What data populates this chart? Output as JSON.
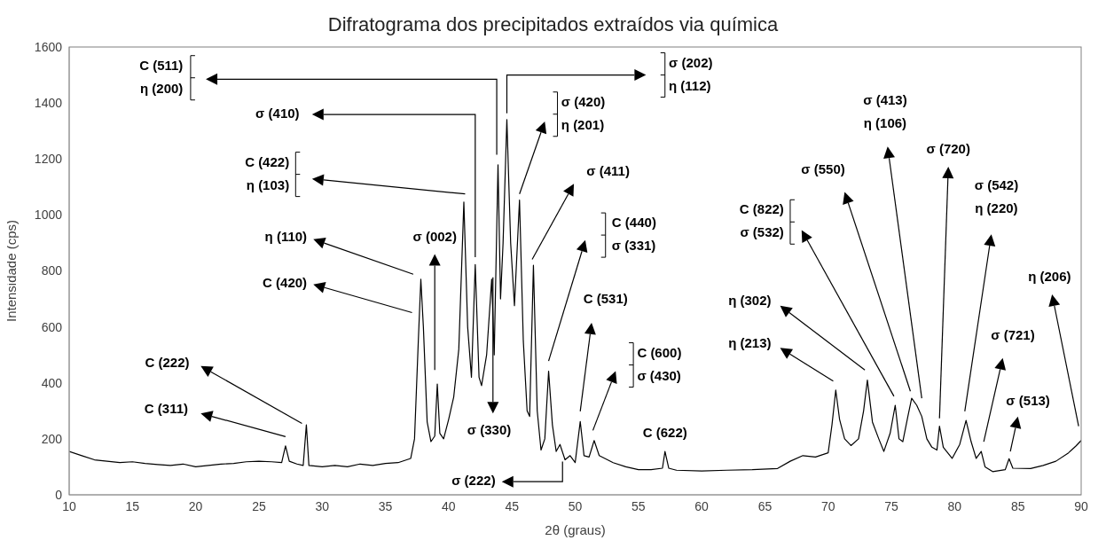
{
  "chart_data": {
    "type": "line",
    "title": "Difratograma dos precipitados extraídos via química",
    "xlabel": "2θ (graus)",
    "ylabel": "Intensidade (cps)",
    "color": "#000000",
    "xlim": [
      10,
      90
    ],
    "xticks": [
      10,
      15,
      20,
      25,
      30,
      35,
      40,
      45,
      50,
      55,
      60,
      65,
      70,
      75,
      80,
      85,
      90
    ],
    "ylim": [
      0,
      1600
    ],
    "yticks": [
      0,
      200,
      400,
      600,
      800,
      1000,
      1200,
      1400,
      1600
    ],
    "x": [
      10,
      11,
      12,
      13,
      14,
      15,
      16,
      17,
      18,
      19,
      20,
      21,
      22,
      23,
      24,
      25,
      26,
      26.8,
      27.1,
      27.4,
      28,
      28.5,
      28.75,
      28.95,
      30,
      31,
      32,
      33,
      34,
      35,
      36,
      37,
      37.3,
      37.6,
      37.8,
      38,
      38.3,
      38.6,
      38.9,
      39.1,
      39.3,
      39.6,
      40,
      40.4,
      40.8,
      41.2,
      41.5,
      41.8,
      42.1,
      42.4,
      42.6,
      43,
      43.4,
      43.6,
      43.9,
      44.1,
      44.3,
      44.6,
      44.9,
      45.2,
      45.6,
      45.9,
      46.2,
      46.4,
      46.7,
      47,
      47.3,
      47.6,
      47.9,
      48.2,
      48.5,
      48.8,
      49.2,
      49.6,
      50,
      50.4,
      50.7,
      51.1,
      51.5,
      51.9,
      53,
      54,
      55,
      56,
      56.9,
      57.1,
      57.4,
      58,
      60,
      62,
      64,
      66,
      67,
      68,
      69,
      70,
      70.3,
      70.6,
      70.9,
      71.3,
      71.8,
      72.4,
      72.8,
      73.1,
      73.5,
      74,
      74.4,
      74.9,
      75.3,
      75.6,
      75.9,
      76.3,
      76.6,
      77,
      77.4,
      77.8,
      78.2,
      78.6,
      78.8,
      79.1,
      79.8,
      80.4,
      80.9,
      81.3,
      81.7,
      82.1,
      82.4,
      83,
      84,
      84.3,
      84.6,
      86,
      87,
      88,
      89,
      89.6,
      90
    ],
    "values": [
      155,
      140,
      125,
      120,
      115,
      118,
      112,
      108,
      105,
      110,
      100,
      105,
      110,
      112,
      118,
      120,
      118,
      115,
      175,
      120,
      110,
      105,
      250,
      105,
      100,
      105,
      100,
      110,
      105,
      112,
      115,
      130,
      200,
      550,
      770,
      600,
      260,
      190,
      210,
      396,
      220,
      200,
      270,
      350,
      520,
      1046,
      600,
      420,
      823,
      420,
      390,
      500,
      770,
      500,
      1179,
      700,
      900,
      1341,
      900,
      676,
      1053,
      550,
      300,
      280,
      820,
      300,
      160,
      200,
      442,
      250,
      155,
      180,
      125,
      140,
      115,
      262,
      140,
      135,
      194,
      140,
      115,
      100,
      90,
      90,
      95,
      155,
      95,
      88,
      85,
      88,
      90,
      94,
      120,
      140,
      135,
      150,
      250,
      374,
      270,
      200,
      176,
      200,
      300,
      410,
      260,
      200,
      155,
      220,
      320,
      200,
      190,
      280,
      345,
      320,
      280,
      200,
      170,
      160,
      245,
      170,
      130,
      180,
      266,
      190,
      130,
      155,
      100,
      83,
      90,
      129,
      95,
      94,
      105,
      120,
      150,
      175,
      194
    ],
    "annotations": [
      "C (311)",
      "C (222)",
      "C (420)",
      "η (110)",
      "σ (002)",
      "C (422)\nη (103)",
      "σ (410)",
      "C (511)\nη (200)",
      "σ (330)",
      "σ (202)\nη (112)",
      "σ (420)\nη (201)",
      "σ (411)",
      "C (440)\nσ (331)",
      "C (531)",
      "C (600)\nσ (430)",
      "σ (222)",
      "C (622)",
      "η (213)",
      "η (302)",
      "C (822)\nσ (532)",
      "σ (550)",
      "σ (413)\nη (106)",
      "σ (720)",
      "σ (542)\nη (220)",
      "σ (721)",
      "σ (513)",
      "η (206)"
    ]
  }
}
